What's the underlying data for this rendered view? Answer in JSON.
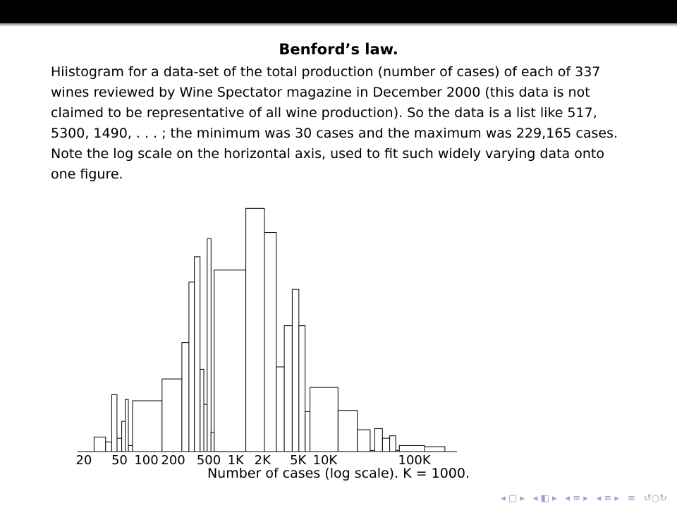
{
  "slide": {
    "title": "Benford’s law.",
    "body": "Hiistogram for a data-set of the total production (number of cases) of each of 337 wines reviewed by Wine Spectator magazine in December 2000 (this data is not claimed to be representative of all wine production). So the data is a list like 517, 5300, 1490, . . . ; the minimum was 30 cases and the maximum was 229,165 cases. Note the log scale on the horizontal axis, used to fit such widely varying data onto one figure."
  },
  "chart_data": {
    "type": "bar",
    "xscale": "log",
    "xlabel": "Number of cases (log scale).  K = 1000.",
    "ylabel": "",
    "title": "",
    "xlim": [
      17,
      300000
    ],
    "ylim": [
      0,
      20
    ],
    "grid": false,
    "xticks": [
      {
        "value": 20,
        "label": "20"
      },
      {
        "value": 50,
        "label": "50"
      },
      {
        "value": 100,
        "label": "100"
      },
      {
        "value": 200,
        "label": "200"
      },
      {
        "value": 500,
        "label": "500"
      },
      {
        "value": 1000,
        "label": "1K"
      },
      {
        "value": 2000,
        "label": "2K"
      },
      {
        "value": 5000,
        "label": "5K"
      },
      {
        "value": 10000,
        "label": "10K"
      },
      {
        "value": 100000,
        "label": "100K"
      }
    ],
    "bins": [
      {
        "x0": 26,
        "x1": 35,
        "count": 1.2
      },
      {
        "x0": 35,
        "x1": 41,
        "count": 0.8
      },
      {
        "x0": 41,
        "x1": 47,
        "count": 4.7
      },
      {
        "x0": 47,
        "x1": 53,
        "count": 1.1
      },
      {
        "x0": 53,
        "x1": 58,
        "count": 2.5
      },
      {
        "x0": 58,
        "x1": 63,
        "count": 4.3
      },
      {
        "x0": 63,
        "x1": 70,
        "count": 0.5
      },
      {
        "x0": 70,
        "x1": 150,
        "count": 4.2
      },
      {
        "x0": 150,
        "x1": 250,
        "count": 6.0
      },
      {
        "x0": 250,
        "x1": 300,
        "count": 9.0
      },
      {
        "x0": 300,
        "x1": 345,
        "count": 14.0
      },
      {
        "x0": 345,
        "x1": 400,
        "count": 16.1
      },
      {
        "x0": 400,
        "x1": 440,
        "count": 6.8
      },
      {
        "x0": 440,
        "x1": 480,
        "count": 3.9
      },
      {
        "x0": 480,
        "x1": 530,
        "count": 17.6
      },
      {
        "x0": 530,
        "x1": 575,
        "count": 1.6
      },
      {
        "x0": 575,
        "x1": 1300,
        "count": 15.0
      },
      {
        "x0": 1300,
        "x1": 2100,
        "count": 20.1
      },
      {
        "x0": 2100,
        "x1": 2850,
        "count": 18.1
      },
      {
        "x0": 2850,
        "x1": 3500,
        "count": 7.0
      },
      {
        "x0": 3500,
        "x1": 4300,
        "count": 10.4
      },
      {
        "x0": 4300,
        "x1": 5100,
        "count": 13.4
      },
      {
        "x0": 5100,
        "x1": 6000,
        "count": 10.4
      },
      {
        "x0": 6000,
        "x1": 6800,
        "count": 3.3
      },
      {
        "x0": 6800,
        "x1": 14000,
        "count": 5.3
      },
      {
        "x0": 14000,
        "x1": 23000,
        "count": 3.4
      },
      {
        "x0": 23000,
        "x1": 32000,
        "count": 1.8
      },
      {
        "x0": 32000,
        "x1": 36000,
        "count": 0.1
      },
      {
        "x0": 36000,
        "x1": 44000,
        "count": 1.9
      },
      {
        "x0": 44000,
        "x1": 53000,
        "count": 1.1
      },
      {
        "x0": 53000,
        "x1": 62000,
        "count": 1.3
      },
      {
        "x0": 62000,
        "x1": 68000,
        "count": 0.1
      },
      {
        "x0": 68000,
        "x1": 130000,
        "count": 0.5
      },
      {
        "x0": 130000,
        "x1": 220000,
        "count": 0.4
      }
    ]
  },
  "nav": {
    "icons": [
      "frame-nav-icon",
      "subsection-nav-icon",
      "section-nav-icon",
      "slide-nav-icon",
      "outline-icon",
      "search-icon"
    ]
  }
}
